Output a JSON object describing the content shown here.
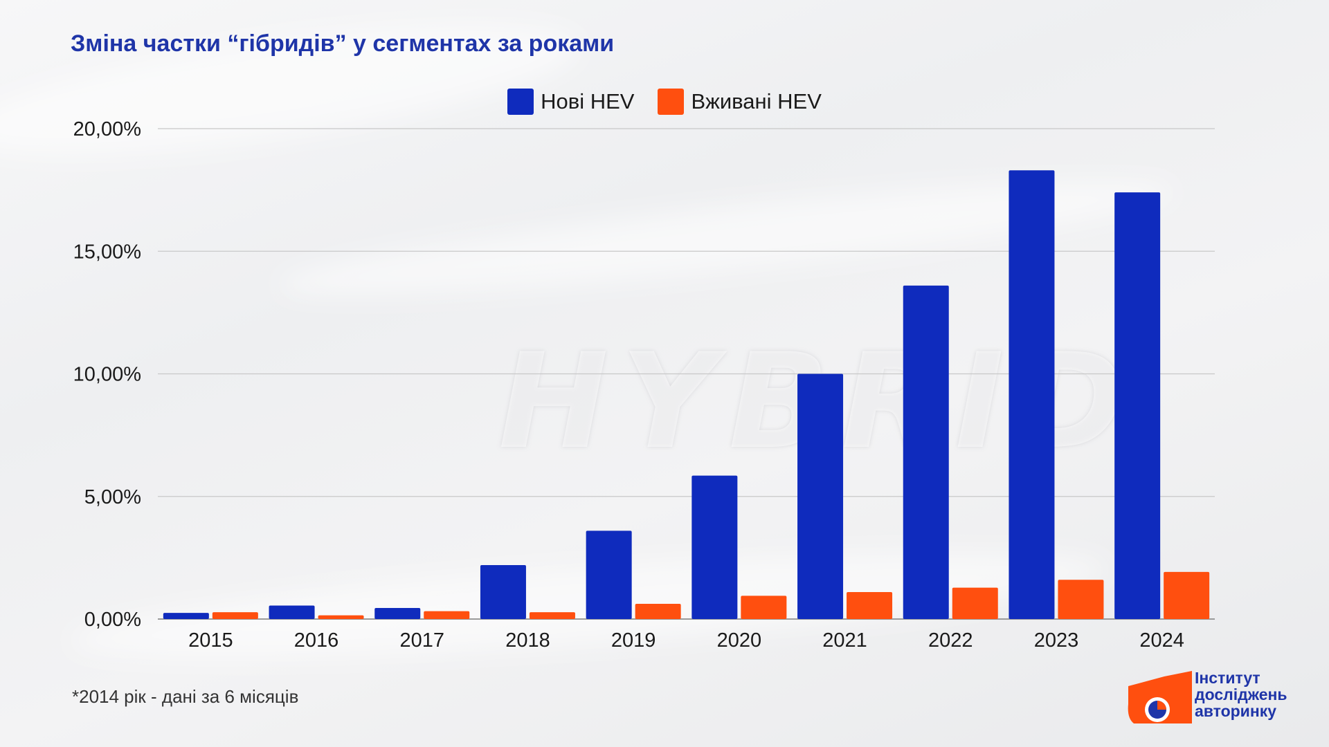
{
  "title": "Зміна частки “гібридів” у сегментах за роками",
  "footnote": "*2014 рік - дані за 6 місяців",
  "logo": {
    "line1": "Інститут",
    "line2": "досліджень",
    "line3": "авторинку"
  },
  "background_word": "HYBRID",
  "colors": {
    "new": "#0f2bbd",
    "used": "#ff4f0f",
    "title": "#1f35a8"
  },
  "chart_data": {
    "type": "bar",
    "title": "Зміна частки “гібридів” у сегментах за роками",
    "categories": [
      "2015",
      "2016",
      "2017",
      "2018",
      "2019",
      "2020",
      "2021",
      "2022",
      "2023",
      "2024"
    ],
    "series": [
      {
        "name": "Нові HEV",
        "values": [
          0.25,
          0.55,
          0.45,
          2.2,
          3.6,
          5.85,
          10.0,
          13.6,
          18.3,
          17.4
        ]
      },
      {
        "name": "Вживані HEV",
        "values": [
          0.28,
          0.15,
          0.32,
          0.28,
          0.62,
          0.95,
          1.1,
          1.28,
          1.6,
          1.92
        ]
      }
    ],
    "ylim": [
      0,
      20
    ],
    "yticks": [
      "0,00%",
      "5,00%",
      "10,00%",
      "15,00%",
      "20,00%"
    ],
    "grid": true,
    "legend_position": "top-center"
  }
}
